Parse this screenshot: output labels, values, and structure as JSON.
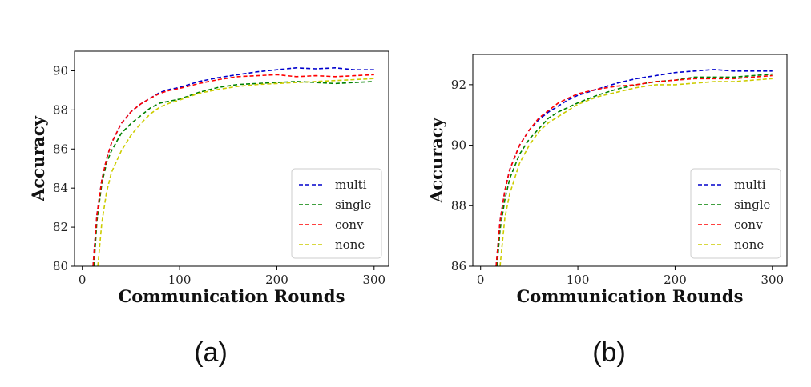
{
  "chart_data": [
    {
      "type": "line",
      "caption": "(a)",
      "xlabel": "Communication Rounds",
      "ylabel": "Accuracy",
      "xlim": [
        -8,
        315
      ],
      "ylim": [
        80,
        91
      ],
      "xticks": [
        0,
        100,
        200,
        300
      ],
      "yticks": [
        80,
        82,
        84,
        86,
        88,
        90
      ],
      "legend_position": "lower-right",
      "series": [
        {
          "name": "multi",
          "color": "#0000cc",
          "x": [
            11,
            15,
            20,
            25,
            30,
            40,
            50,
            60,
            70,
            80,
            90,
            100,
            120,
            140,
            160,
            180,
            200,
            220,
            240,
            260,
            280,
            300
          ],
          "y": [
            80.0,
            82.6,
            84.4,
            85.5,
            86.3,
            87.3,
            87.9,
            88.3,
            88.6,
            88.9,
            89.05,
            89.15,
            89.45,
            89.65,
            89.8,
            89.95,
            90.05,
            90.15,
            90.1,
            90.15,
            90.05,
            90.05
          ]
        },
        {
          "name": "single",
          "color": "#008000",
          "x": [
            12,
            15,
            20,
            25,
            30,
            40,
            50,
            60,
            70,
            80,
            90,
            100,
            120,
            140,
            160,
            180,
            200,
            220,
            240,
            260,
            280,
            300
          ],
          "y": [
            80.0,
            82.3,
            84.2,
            85.3,
            85.9,
            86.8,
            87.3,
            87.7,
            88.1,
            88.35,
            88.45,
            88.55,
            88.9,
            89.15,
            89.3,
            89.35,
            89.4,
            89.45,
            89.4,
            89.35,
            89.4,
            89.45
          ]
        },
        {
          "name": "conv",
          "color": "#ff0000",
          "x": [
            11,
            15,
            20,
            25,
            30,
            40,
            50,
            60,
            70,
            80,
            90,
            100,
            120,
            140,
            160,
            180,
            200,
            220,
            240,
            260,
            280,
            300
          ],
          "y": [
            80.0,
            82.6,
            84.4,
            85.5,
            86.3,
            87.3,
            87.9,
            88.3,
            88.6,
            88.85,
            89.0,
            89.1,
            89.35,
            89.55,
            89.7,
            89.75,
            89.8,
            89.7,
            89.75,
            89.7,
            89.75,
            89.8
          ]
        },
        {
          "name": "none",
          "color": "#cccc00",
          "x": [
            16,
            20,
            25,
            30,
            40,
            50,
            60,
            70,
            80,
            90,
            100,
            120,
            140,
            160,
            180,
            200,
            220,
            240,
            260,
            280,
            300
          ],
          "y": [
            80.0,
            82.2,
            83.8,
            84.8,
            85.9,
            86.7,
            87.3,
            87.8,
            88.15,
            88.35,
            88.5,
            88.85,
            89.05,
            89.2,
            89.3,
            89.35,
            89.4,
            89.45,
            89.5,
            89.55,
            89.6
          ]
        }
      ]
    },
    {
      "type": "line",
      "caption": "(b)",
      "xlabel": "Communication Rounds",
      "ylabel": "Accuracy",
      "xlim": [
        -8,
        315
      ],
      "ylim": [
        86,
        93
      ],
      "xticks": [
        0,
        100,
        200,
        300
      ],
      "yticks": [
        86,
        88,
        90,
        92
      ],
      "legend_position": "lower-right",
      "series": [
        {
          "name": "multi",
          "color": "#0000cc",
          "x": [
            16,
            20,
            25,
            30,
            40,
            50,
            60,
            70,
            80,
            90,
            100,
            120,
            140,
            160,
            180,
            200,
            220,
            240,
            260,
            280,
            300
          ],
          "y": [
            86.0,
            87.5,
            88.5,
            89.2,
            90.0,
            90.5,
            90.85,
            91.1,
            91.3,
            91.5,
            91.65,
            91.85,
            92.05,
            92.2,
            92.3,
            92.4,
            92.45,
            92.5,
            92.45,
            92.45,
            92.45
          ]
        },
        {
          "name": "single",
          "color": "#008000",
          "x": [
            17,
            20,
            25,
            30,
            40,
            50,
            60,
            70,
            80,
            90,
            100,
            120,
            140,
            160,
            180,
            200,
            220,
            240,
            260,
            280,
            300
          ],
          "y": [
            86.0,
            87.2,
            88.2,
            88.9,
            89.7,
            90.2,
            90.55,
            90.9,
            91.1,
            91.25,
            91.4,
            91.65,
            91.85,
            92.0,
            92.1,
            92.15,
            92.25,
            92.25,
            92.25,
            92.3,
            92.35
          ]
        },
        {
          "name": "conv",
          "color": "#ff0000",
          "x": [
            16,
            20,
            25,
            30,
            40,
            50,
            60,
            70,
            80,
            90,
            100,
            120,
            140,
            160,
            180,
            200,
            220,
            240,
            260,
            280,
            300
          ],
          "y": [
            86.0,
            87.5,
            88.5,
            89.2,
            90.0,
            90.5,
            90.9,
            91.15,
            91.4,
            91.55,
            91.7,
            91.85,
            91.95,
            92.0,
            92.1,
            92.15,
            92.2,
            92.2,
            92.2,
            92.25,
            92.3
          ]
        },
        {
          "name": "none",
          "color": "#cccc00",
          "x": [
            20,
            25,
            30,
            40,
            50,
            60,
            70,
            80,
            90,
            100,
            120,
            140,
            160,
            180,
            200,
            220,
            240,
            260,
            280,
            300
          ],
          "y": [
            86.0,
            87.6,
            88.4,
            89.4,
            90.0,
            90.45,
            90.75,
            90.95,
            91.15,
            91.35,
            91.6,
            91.75,
            91.9,
            92.0,
            92.0,
            92.05,
            92.1,
            92.1,
            92.15,
            92.2
          ]
        }
      ]
    }
  ]
}
